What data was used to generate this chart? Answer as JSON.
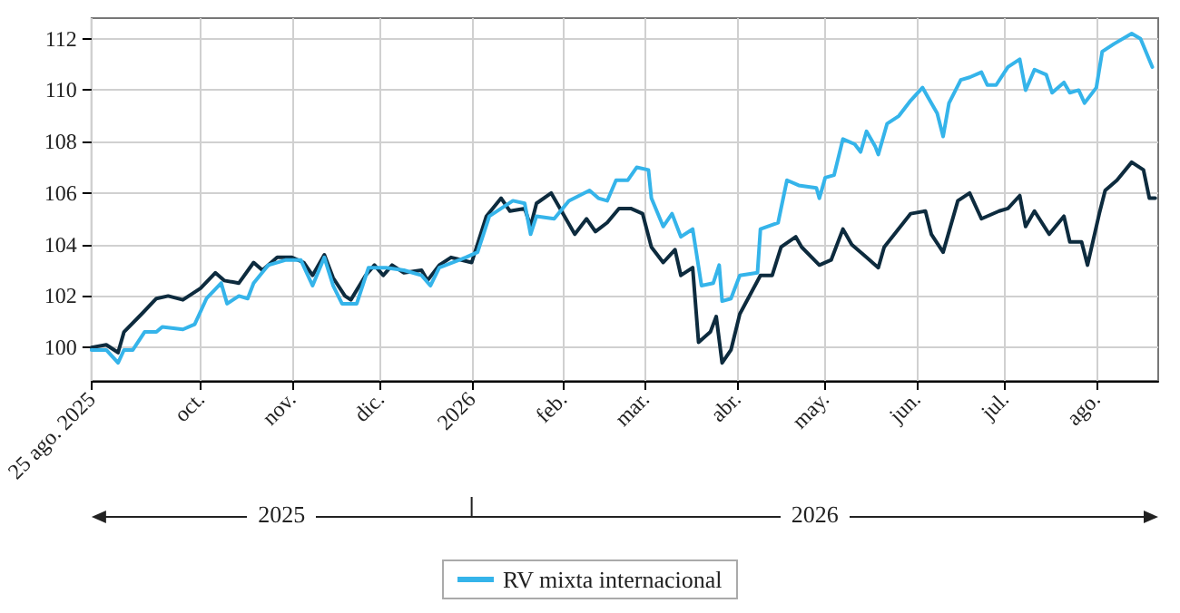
{
  "chart_data": {
    "type": "line",
    "annotations": [
      "2025",
      "2026"
    ],
    "xlim": [
      "2025-08-25",
      "2026-08-22"
    ],
    "xticks": [
      {
        "value": "2025-08-25",
        "label": "25 ago. 2025"
      },
      {
        "value": "2025-10-01",
        "label": "oct."
      },
      {
        "value": "2025-11-01",
        "label": "nov."
      },
      {
        "value": "2025-12-01",
        "label": "dic."
      },
      {
        "value": "2026-01-01",
        "label": "2026"
      },
      {
        "value": "2026-02-01",
        "label": "feb."
      },
      {
        "value": "2026-03-01",
        "label": "mar."
      },
      {
        "value": "2026-04-01",
        "label": "abr."
      },
      {
        "value": "2026-05-01",
        "label": "may."
      },
      {
        "value": "2026-06-01",
        "label": "jun."
      },
      {
        "value": "2026-07-01",
        "label": "jul."
      },
      {
        "value": "2026-08-01",
        "label": "ago."
      }
    ],
    "ylim": [
      98.7,
      112.8
    ],
    "yticks": [
      100,
      102,
      104,
      106,
      108,
      110,
      112
    ],
    "grid": true,
    "legend": "bottom",
    "marker": "none",
    "line_style": "solid",
    "series": [
      {
        "color": "#0d2b3e",
        "x": [
          "2025-08-25",
          "2025-08-30",
          "2025-09-03",
          "2025-09-05",
          "2025-09-11",
          "2025-09-16",
          "2025-09-20",
          "2025-09-25",
          "2025-10-01",
          "2025-10-06",
          "2025-10-09",
          "2025-10-14",
          "2025-10-19",
          "2025-10-22",
          "2025-10-27",
          "2025-11-01",
          "2025-11-05",
          "2025-11-08",
          "2025-11-12",
          "2025-11-15",
          "2025-11-19",
          "2025-11-21",
          "2025-11-26",
          "2025-11-29",
          "2025-12-02",
          "2025-12-05",
          "2025-12-09",
          "2025-12-15",
          "2025-12-17",
          "2025-12-21",
          "2025-12-25",
          "2026-01-01",
          "2026-01-06",
          "2026-01-11",
          "2026-01-14",
          "2026-01-19",
          "2026-01-21",
          "2026-01-23",
          "2026-01-28",
          "2026-01-31",
          "2026-02-05",
          "2026-02-09",
          "2026-02-12",
          "2026-02-16",
          "2026-02-20",
          "2026-02-24",
          "2026-02-28",
          "2026-03-03",
          "2026-03-07",
          "2026-03-11",
          "2026-03-13",
          "2026-03-17",
          "2026-03-19",
          "2026-03-23",
          "2026-03-25",
          "2026-03-27",
          "2026-03-30",
          "2026-04-02",
          "2026-04-09",
          "2026-04-13",
          "2026-04-16",
          "2026-04-21",
          "2026-04-23",
          "2026-04-29",
          "2026-05-03",
          "2026-05-07",
          "2026-05-10",
          "2026-05-15",
          "2026-05-19",
          "2026-05-21",
          "2026-05-30",
          "2026-06-04",
          "2026-06-06",
          "2026-06-10",
          "2026-06-15",
          "2026-06-19",
          "2026-06-23",
          "2026-06-29",
          "2026-07-02",
          "2026-07-06",
          "2026-07-08",
          "2026-07-11",
          "2026-07-16",
          "2026-07-21",
          "2026-07-23",
          "2026-07-27",
          "2026-07-29",
          "2026-08-02",
          "2026-08-04",
          "2026-08-08",
          "2026-08-13",
          "2026-08-17",
          "2026-08-19",
          "2026-08-21"
        ],
        "values": [
          100.0,
          100.1,
          99.8,
          100.6,
          101.3,
          101.9,
          102.0,
          101.85,
          102.3,
          102.9,
          102.6,
          102.5,
          103.3,
          103.0,
          103.5,
          103.5,
          103.3,
          102.8,
          103.6,
          102.7,
          102.0,
          101.85,
          102.8,
          103.2,
          102.8,
          103.2,
          102.9,
          103.0,
          102.6,
          103.2,
          103.5,
          103.3,
          105.1,
          105.8,
          105.3,
          105.4,
          104.7,
          105.6,
          106.0,
          105.4,
          104.4,
          105.0,
          104.5,
          104.85,
          105.4,
          105.4,
          105.2,
          103.9,
          103.3,
          103.8,
          102.8,
          103.1,
          100.2,
          100.6,
          101.2,
          99.4,
          99.9,
          101.3,
          102.8,
          102.8,
          103.9,
          104.3,
          103.9,
          103.2,
          103.4,
          104.6,
          104.0,
          103.5,
          103.1,
          103.9,
          105.2,
          105.3,
          104.4,
          103.7,
          105.7,
          106.0,
          105.0,
          105.3,
          105.4,
          105.9,
          104.7,
          105.3,
          104.4,
          105.1,
          104.1,
          104.1,
          103.2,
          105.2,
          106.1,
          106.5,
          107.2,
          106.9,
          105.8,
          105.8
        ]
      },
      {
        "name": "RV mixta internacional",
        "color": "#35b4ea",
        "x": [
          "2025-08-25",
          "2025-08-30",
          "2025-09-03",
          "2025-09-05",
          "2025-09-08",
          "2025-09-12",
          "2025-09-16",
          "2025-09-18",
          "2025-09-25",
          "2025-09-29",
          "2025-10-03",
          "2025-10-08",
          "2025-10-10",
          "2025-10-14",
          "2025-10-17",
          "2025-10-19",
          "2025-10-24",
          "2025-10-30",
          "2025-11-04",
          "2025-11-08",
          "2025-11-12",
          "2025-11-15",
          "2025-11-18",
          "2025-11-23",
          "2025-11-27",
          "2025-12-03",
          "2025-12-09",
          "2025-12-15",
          "2025-12-18",
          "2025-12-21",
          "2025-12-30",
          "2026-01-03",
          "2026-01-07",
          "2026-01-11",
          "2026-01-15",
          "2026-01-19",
          "2026-01-21",
          "2026-01-23",
          "2026-01-29",
          "2026-02-03",
          "2026-02-10",
          "2026-02-13",
          "2026-02-16",
          "2026-02-19",
          "2026-02-23",
          "2026-02-26",
          "2026-03-02",
          "2026-03-03",
          "2026-03-07",
          "2026-03-10",
          "2026-03-13",
          "2026-03-17",
          "2026-03-20",
          "2026-03-24",
          "2026-03-26",
          "2026-03-27",
          "2026-03-30",
          "2026-04-02",
          "2026-04-08",
          "2026-04-09",
          "2026-04-15",
          "2026-04-18",
          "2026-04-22",
          "2026-04-28",
          "2026-04-29",
          "2026-05-01",
          "2026-05-04",
          "2026-05-07",
          "2026-05-11",
          "2026-05-13",
          "2026-05-15",
          "2026-05-18",
          "2026-05-19",
          "2026-05-22",
          "2026-05-26",
          "2026-05-30",
          "2026-06-03",
          "2026-06-05",
          "2026-06-08",
          "2026-06-10",
          "2026-06-12",
          "2026-06-16",
          "2026-06-19",
          "2026-06-23",
          "2026-06-25",
          "2026-06-28",
          "2026-07-02",
          "2026-07-06",
          "2026-07-08",
          "2026-07-11",
          "2026-07-15",
          "2026-07-17",
          "2026-07-21",
          "2026-07-23",
          "2026-07-26",
          "2026-07-28",
          "2026-08-01",
          "2026-08-03",
          "2026-08-07",
          "2026-08-13",
          "2026-08-16",
          "2026-08-20"
        ],
        "values": [
          99.9,
          99.9,
          99.4,
          99.9,
          99.9,
          100.6,
          100.6,
          100.8,
          100.7,
          100.9,
          101.9,
          102.5,
          101.7,
          102.0,
          101.9,
          102.5,
          103.2,
          103.4,
          103.4,
          102.4,
          103.5,
          102.4,
          101.7,
          101.7,
          103.1,
          103.1,
          103.0,
          102.8,
          102.4,
          103.1,
          103.5,
          103.7,
          105.1,
          105.4,
          105.7,
          105.6,
          104.4,
          105.1,
          105.0,
          105.7,
          106.1,
          105.8,
          105.7,
          106.5,
          106.5,
          107.0,
          106.9,
          105.8,
          104.7,
          105.2,
          104.3,
          104.6,
          102.4,
          102.5,
          103.2,
          101.8,
          101.9,
          102.8,
          102.9,
          104.6,
          104.85,
          106.5,
          106.3,
          106.2,
          105.8,
          106.6,
          106.7,
          108.1,
          107.9,
          107.6,
          108.4,
          107.8,
          107.5,
          108.7,
          109.0,
          109.6,
          110.1,
          109.7,
          109.1,
          108.2,
          109.5,
          110.4,
          110.5,
          110.7,
          110.2,
          110.2,
          110.9,
          111.2,
          110.0,
          110.8,
          110.6,
          109.9,
          110.3,
          109.9,
          110.0,
          109.5,
          110.1,
          111.5,
          111.8,
          112.2,
          112.0,
          110.9
        ]
      }
    ]
  }
}
